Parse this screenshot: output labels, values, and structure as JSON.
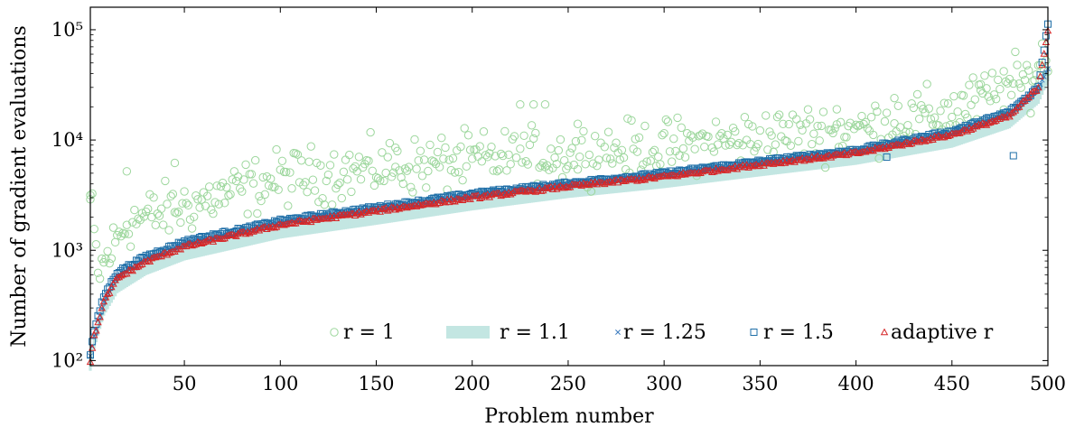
{
  "chart_data": {
    "type": "scatter",
    "xlabel": "Problem number",
    "ylabel": "Number of gradient evaluations",
    "xlim": [
      1,
      500
    ],
    "ylim": [
      90,
      160000
    ],
    "yscale": "log",
    "xticks": [
      50,
      100,
      150,
      200,
      250,
      300,
      350,
      400,
      450,
      500
    ],
    "yticks": [
      {
        "value": 100,
        "label": "10²"
      },
      {
        "value": 1000,
        "label": "10³"
      },
      {
        "value": 10000,
        "label": "10⁴"
      },
      {
        "value": 100000,
        "label": "10⁵"
      }
    ],
    "legend_position": "bottom-right",
    "n_problems": 500,
    "series": [
      {
        "name": "r = 1",
        "marker": "circle-open",
        "color": "#9dd79d",
        "profile": [
          [
            1,
            3000
          ],
          [
            5,
            600
          ],
          [
            20,
            1800
          ],
          [
            50,
            2500
          ],
          [
            100,
            4500
          ],
          [
            150,
            5500
          ],
          [
            200,
            6500
          ],
          [
            250,
            7500
          ],
          [
            300,
            8500
          ],
          [
            350,
            10500
          ],
          [
            400,
            12500
          ],
          [
            450,
            18000
          ],
          [
            490,
            35000
          ],
          [
            500,
            60000
          ]
        ],
        "spread_log10": 0.22,
        "extremes": [
          [
            1,
            2900
          ],
          [
            20,
            5200
          ],
          [
            45,
            6200
          ],
          [
            160,
            8500
          ],
          [
            225,
            21000
          ],
          [
            232,
            21000
          ],
          [
            238,
            21000
          ],
          [
            255,
            14000
          ],
          [
            390,
            19000
          ],
          [
            420,
            24000
          ],
          [
            465,
            32000
          ],
          [
            477,
            42000
          ]
        ]
      },
      {
        "name": "r = 1.1",
        "marker": "band",
        "color": "#c3e6e2",
        "profile": [
          [
            1,
            95
          ],
          [
            3,
            150
          ],
          [
            8,
            300
          ],
          [
            15,
            480
          ],
          [
            30,
            700
          ],
          [
            50,
            950
          ],
          [
            100,
            1500
          ],
          [
            150,
            2000
          ],
          [
            200,
            2700
          ],
          [
            250,
            3500
          ],
          [
            300,
            4300
          ],
          [
            350,
            5500
          ],
          [
            400,
            7000
          ],
          [
            450,
            10000
          ],
          [
            480,
            15000
          ],
          [
            495,
            25000
          ],
          [
            500,
            40000
          ]
        ],
        "width_log10": 0.07
      },
      {
        "name": "r = 1.25",
        "marker": "cross",
        "color": "#3a7bbf",
        "profile": [
          [
            1,
            110
          ],
          [
            3,
            170
          ],
          [
            8,
            350
          ],
          [
            15,
            580
          ],
          [
            30,
            820
          ],
          [
            50,
            1120
          ],
          [
            100,
            1750
          ],
          [
            150,
            2350
          ],
          [
            200,
            3100
          ],
          [
            250,
            3900
          ],
          [
            300,
            4800
          ],
          [
            350,
            6200
          ],
          [
            400,
            7800
          ],
          [
            450,
            11500
          ],
          [
            480,
            17000
          ],
          [
            495,
            30000
          ],
          [
            500,
            45000
          ]
        ]
      },
      {
        "name": "r = 1.5",
        "marker": "square-open",
        "color": "#1f6fa8",
        "profile": [
          [
            1,
            115
          ],
          [
            3,
            185
          ],
          [
            8,
            380
          ],
          [
            15,
            630
          ],
          [
            30,
            880
          ],
          [
            50,
            1200
          ],
          [
            100,
            1850
          ],
          [
            150,
            2450
          ],
          [
            200,
            3250
          ],
          [
            250,
            4050
          ],
          [
            300,
            5000
          ],
          [
            350,
            6400
          ],
          [
            400,
            8100
          ],
          [
            450,
            12000
          ],
          [
            480,
            18000
          ],
          [
            495,
            30000
          ],
          [
            500,
            115000
          ]
        ],
        "outliers": [
          [
            416,
            7000
          ],
          [
            482,
            7200
          ]
        ]
      },
      {
        "name": "adaptive r",
        "marker": "triangle-open",
        "color": "#d62728",
        "profile": [
          [
            1,
            100
          ],
          [
            3,
            165
          ],
          [
            8,
            340
          ],
          [
            15,
            560
          ],
          [
            30,
            790
          ],
          [
            50,
            1080
          ],
          [
            100,
            1700
          ],
          [
            150,
            2280
          ],
          [
            200,
            3000
          ],
          [
            250,
            3800
          ],
          [
            300,
            4650
          ],
          [
            350,
            6000
          ],
          [
            400,
            7600
          ],
          [
            450,
            11200
          ],
          [
            480,
            16500
          ],
          [
            495,
            30000
          ],
          [
            500,
            100000
          ]
        ]
      }
    ]
  }
}
